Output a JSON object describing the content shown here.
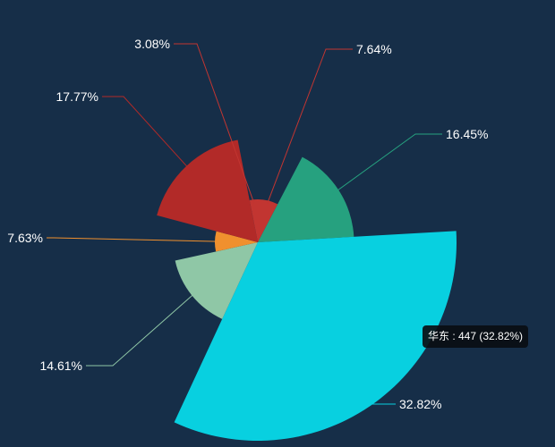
{
  "chart_data": {
    "type": "pie",
    "variant": "rose",
    "slices": [
      {
        "label": "",
        "percent_label": "7.64%",
        "percent": 7.64,
        "color": "#c23531"
      },
      {
        "label": "",
        "percent_label": "16.45%",
        "percent": 16.45,
        "color": "#26a17f"
      },
      {
        "label": "华东",
        "percent_label": "32.82%",
        "percent": 32.82,
        "value": 447,
        "color": "#08d0e0"
      },
      {
        "label": "",
        "percent_label": "14.61%",
        "percent": 14.61,
        "color": "#8fc7a6"
      },
      {
        "label": "",
        "percent_label": "7.63%",
        "percent": 7.63,
        "color": "#f0902e"
      },
      {
        "label": "",
        "percent_label": "17.77%",
        "percent": 17.77,
        "color": "#b22a28"
      },
      {
        "label": "",
        "percent_label": "3.08%",
        "percent": 3.08,
        "color": "#c23531"
      }
    ],
    "background": "#162e48"
  },
  "tooltip": {
    "text": "华东 : 447 (32.82%)"
  }
}
